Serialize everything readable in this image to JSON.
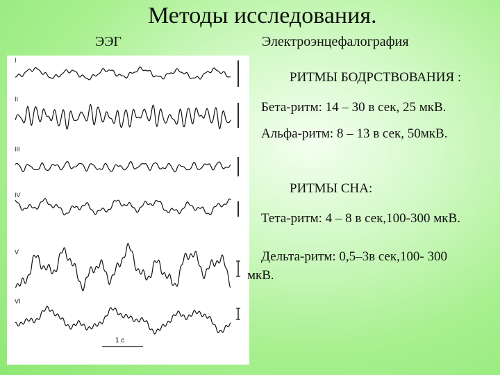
{
  "slide": {
    "title": "Методы исследования.",
    "eeg_abbrev": "ЭЭГ",
    "eeg_full": "Электроэнцефалография"
  },
  "eeg_figure": {
    "traces": [
      {
        "label": "I",
        "rhythm": "mixed",
        "scale_bar": "|"
      },
      {
        "label": "II",
        "rhythm": "beta",
        "scale_bar": "|"
      },
      {
        "label": "III",
        "rhythm": "alpha",
        "scale_bar": "|"
      },
      {
        "label": "IV",
        "rhythm": "alpha-theta",
        "scale_bar": "|"
      },
      {
        "label": "V",
        "rhythm": "theta-delta",
        "scale_bar": "I"
      },
      {
        "label": "VI",
        "rhythm": "delta",
        "scale_bar": "I"
      }
    ],
    "time_scale_label": "1 с",
    "background_color": "#ffffff",
    "trace_color": "#111111"
  },
  "rhythms": {
    "awake_heading": "РИТМЫ БОДРСТВОВАНИЯ :",
    "beta": "Бета-ритм:   14 – 30 в сек, 25 мкВ.",
    "alpha": "Альфа-ритм: 8 – 13 в сек, 50мкВ.",
    "sleep_heading": "РИТМЫ СНА:",
    "theta": "Тета-ритм: 4 – 8 в сек,100-300 мкВ.",
    "delta_line1": "Дельта-ритм: 0,5–3в сек,100- 300",
    "delta_line2": "мкВ."
  },
  "theme": {
    "background_center": "#f4fff0",
    "background_edge": "#8ee874"
  }
}
